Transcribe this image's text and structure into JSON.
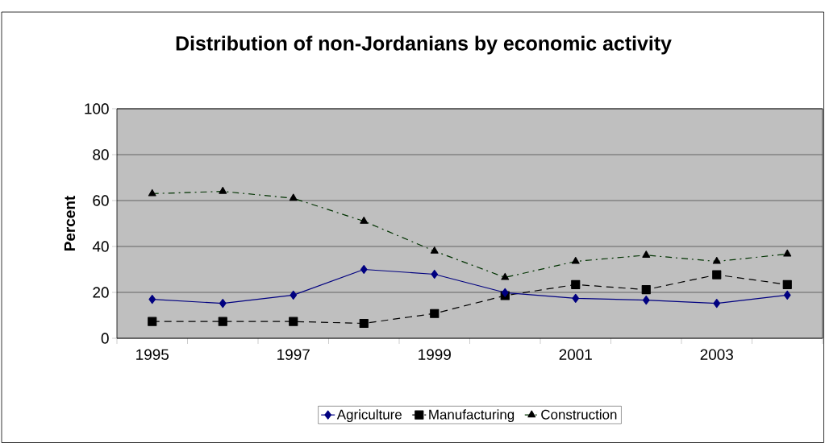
{
  "chart_data": {
    "type": "line",
    "title": "Distribution of non-Jordanians by economic activity",
    "ylabel": "Percent",
    "categories": [
      "1995",
      null,
      "1997",
      null,
      "1999",
      null,
      "2001",
      null,
      "2003",
      null
    ],
    "series": [
      {
        "name": "Agriculture",
        "color": "#000080",
        "marker": "diamond",
        "line_style": "solid",
        "values": [
          17,
          15.2,
          18.8,
          30,
          27.9,
          19.9,
          17.4,
          16.6,
          15.2,
          18.8
        ]
      },
      {
        "name": "Manufacturing",
        "color": "#000000",
        "marker": "square",
        "line_style": "dashed",
        "values": [
          7.3,
          7.3,
          7.3,
          6.5,
          10.8,
          18.6,
          23.4,
          21.2,
          27.7,
          23.4
        ]
      },
      {
        "name": "Construction",
        "color": "#003300",
        "marker": "triangle",
        "line_style": "dashdot",
        "values": [
          63,
          64,
          61,
          51,
          38,
          26.5,
          33.5,
          36.2,
          33.5,
          36.7
        ]
      }
    ],
    "ylim": [
      0,
      100
    ],
    "yticks": [
      0,
      20,
      40,
      60,
      80,
      100
    ],
    "grid": "y",
    "legend": "bottom"
  }
}
